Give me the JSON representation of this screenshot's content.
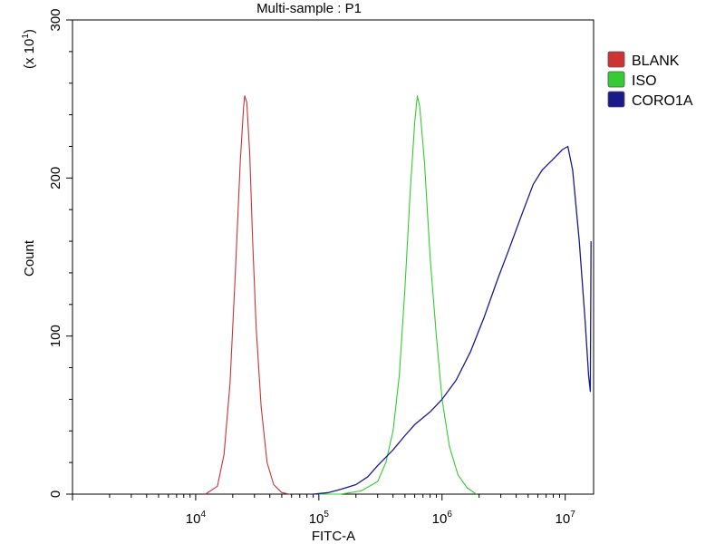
{
  "chart_data": {
    "type": "line",
    "title": "Multi-sample : P1",
    "xlabel": "FITC-A",
    "ylabel": "Count",
    "y_multiplier_label": "(x 10",
    "y_multiplier_exp": "1",
    "x_scale": "log",
    "xlim": [
      1000,
      17000000
    ],
    "ylim": [
      0,
      300
    ],
    "x_ticks": [
      {
        "value": 10000,
        "base": "10",
        "exp": "4"
      },
      {
        "value": 100000,
        "base": "10",
        "exp": "5"
      },
      {
        "value": 1000000,
        "base": "10",
        "exp": "6"
      },
      {
        "value": 10000000,
        "base": "10",
        "exp": "7"
      }
    ],
    "y_ticks": [
      {
        "value": 0,
        "label": "0"
      },
      {
        "value": 100,
        "label": "100"
      },
      {
        "value": 200,
        "label": "200"
      },
      {
        "value": 300,
        "label": "300"
      }
    ],
    "legend_position": "top-right",
    "series": [
      {
        "name": "BLANK",
        "color": "#cc3333",
        "points": [
          [
            12000,
            0
          ],
          [
            15000,
            5
          ],
          [
            17000,
            25
          ],
          [
            19000,
            70
          ],
          [
            21000,
            140
          ],
          [
            23000,
            210
          ],
          [
            24500,
            245
          ],
          [
            25000,
            252
          ],
          [
            26000,
            248
          ],
          [
            27500,
            215
          ],
          [
            29000,
            160
          ],
          [
            31000,
            105
          ],
          [
            34000,
            55
          ],
          [
            38000,
            20
          ],
          [
            43000,
            6
          ],
          [
            50000,
            1
          ],
          [
            58000,
            0
          ]
        ]
      },
      {
        "name": "ISO",
        "color": "#33cc33",
        "points": [
          [
            100000,
            0
          ],
          [
            150000,
            0
          ],
          [
            220000,
            2
          ],
          [
            300000,
            8
          ],
          [
            350000,
            20
          ],
          [
            400000,
            40
          ],
          [
            450000,
            75
          ],
          [
            500000,
            130
          ],
          [
            550000,
            190
          ],
          [
            600000,
            235
          ],
          [
            630000,
            252
          ],
          [
            660000,
            245
          ],
          [
            720000,
            210
          ],
          [
            800000,
            150
          ],
          [
            900000,
            100
          ],
          [
            1000000,
            60
          ],
          [
            1150000,
            30
          ],
          [
            1350000,
            12
          ],
          [
            1600000,
            4
          ],
          [
            1900000,
            0
          ]
        ]
      },
      {
        "name": "CORO1A",
        "color": "#1a1a8c",
        "points": [
          [
            90000,
            0
          ],
          [
            120000,
            1
          ],
          [
            150000,
            3
          ],
          [
            200000,
            6
          ],
          [
            250000,
            11
          ],
          [
            300000,
            18
          ],
          [
            400000,
            28
          ],
          [
            500000,
            37
          ],
          [
            600000,
            44
          ],
          [
            800000,
            52
          ],
          [
            1000000,
            60
          ],
          [
            1300000,
            72
          ],
          [
            1700000,
            90
          ],
          [
            2200000,
            112
          ],
          [
            2800000,
            135
          ],
          [
            3500000,
            155
          ],
          [
            4500000,
            178
          ],
          [
            5500000,
            196
          ],
          [
            6500000,
            205
          ],
          [
            8000000,
            212
          ],
          [
            9500000,
            218
          ],
          [
            10500000,
            220
          ],
          [
            11500000,
            205
          ],
          [
            13000000,
            160
          ],
          [
            14500000,
            110
          ],
          [
            15500000,
            75
          ],
          [
            16000000,
            65
          ],
          [
            16200000,
            160
          ]
        ]
      }
    ]
  }
}
